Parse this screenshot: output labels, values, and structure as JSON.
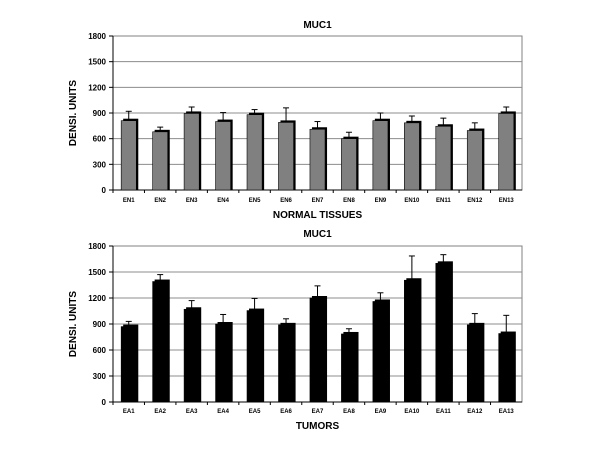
{
  "chart_data": [
    {
      "type": "bar",
      "title": "MUC1",
      "xlabel": "NORMAL TISSUES",
      "ylabel": "DENSI. UNITS",
      "ylim": [
        0,
        1800
      ],
      "yticks": [
        "0",
        "300",
        "600",
        "900",
        "1200",
        "1500",
        "1800"
      ],
      "grid": true,
      "bar_color": "#808080",
      "categories": [
        "EN1",
        "EN2",
        "EN3",
        "EN4",
        "EN5",
        "EN6",
        "EN7",
        "EN8",
        "EN9",
        "EN10",
        "EN11",
        "EN12",
        "EN13"
      ],
      "values": [
        810,
        680,
        895,
        800,
        880,
        790,
        710,
        600,
        810,
        785,
        745,
        695,
        895
      ],
      "errors": [
        110,
        55,
        75,
        105,
        60,
        170,
        90,
        75,
        90,
        80,
        95,
        90,
        75
      ]
    },
    {
      "type": "bar",
      "title": "MUC1",
      "xlabel": "TUMORS",
      "ylabel": "DENSI. UNITS",
      "ylim": [
        0,
        1800
      ],
      "yticks": [
        "0",
        "300",
        "600",
        "900",
        "1200",
        "1500",
        "1800"
      ],
      "grid": true,
      "bar_color": "#000000",
      "categories": [
        "EA1",
        "EA2",
        "EA3",
        "EA4",
        "EA5",
        "EA6",
        "EA7",
        "EA8",
        "EA9",
        "EA10",
        "EA11",
        "EA12",
        "EA13"
      ],
      "values": [
        870,
        1390,
        1070,
        900,
        1055,
        890,
        1200,
        785,
        1160,
        1405,
        1600,
        890,
        790
      ],
      "errors": [
        60,
        80,
        100,
        110,
        140,
        70,
        140,
        60,
        100,
        280,
        100,
        130,
        210
      ]
    }
  ]
}
